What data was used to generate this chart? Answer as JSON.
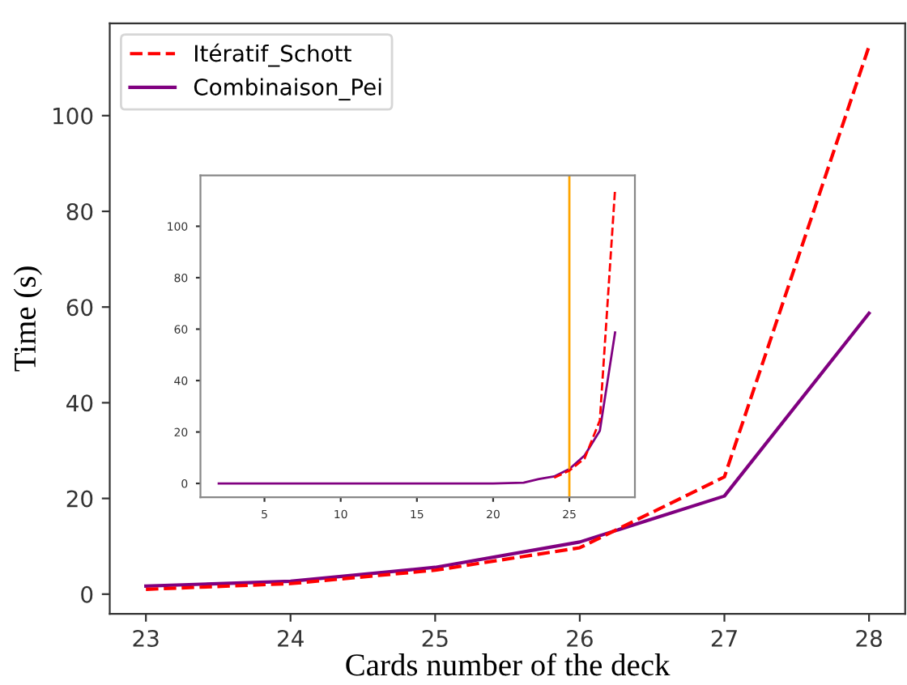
{
  "chart_data": [
    {
      "type": "line",
      "xlabel": "Cards number of the deck",
      "ylabel": "Time (s)",
      "x": [
        23,
        24,
        25,
        26,
        27,
        28
      ],
      "series": [
        {
          "name": "Itératif_Schott",
          "color": "#ff0000",
          "line_style": "dashed",
          "values": [
            1.0,
            2.2,
            5.0,
            9.7,
            24.5,
            114.5
          ]
        },
        {
          "name": "Combinaison_Pei",
          "color": "#800080",
          "line_style": "solid",
          "values": [
            1.7,
            2.7,
            5.6,
            10.9,
            20.5,
            58.7
          ]
        }
      ],
      "xlim": [
        22.75,
        28.25
      ],
      "ylim": [
        -4.1,
        119.3
      ],
      "xticks": [
        23,
        24,
        25,
        26,
        27,
        28
      ],
      "yticks": [
        0,
        20,
        40,
        60,
        80,
        100
      ],
      "legend": "top left",
      "grid": false
    },
    {
      "type": "line",
      "x": [
        2,
        3,
        4,
        5,
        6,
        7,
        8,
        9,
        10,
        11,
        12,
        13,
        14,
        15,
        16,
        17,
        18,
        19,
        20,
        21,
        22,
        23,
        24,
        25,
        26,
        27,
        28
      ],
      "series": [
        {
          "color": "#ff0000",
          "line_style": "dashed",
          "values": [
            null,
            null,
            null,
            null,
            null,
            null,
            null,
            null,
            null,
            null,
            null,
            null,
            null,
            null,
            null,
            null,
            null,
            null,
            null,
            null,
            null,
            null,
            2.2,
            5.0,
            9.7,
            24.5,
            114.5
          ]
        },
        {
          "color": "#800080",
          "line_style": "solid",
          "values": [
            0,
            0,
            0,
            0,
            0,
            0,
            0,
            0,
            0,
            0,
            0,
            0,
            0,
            0,
            0,
            0,
            0,
            0,
            0,
            0.1,
            0.3,
            1.7,
            2.7,
            5.6,
            10.9,
            20.5,
            58.7
          ]
        }
      ],
      "xlim": [
        0.8,
        29.3
      ],
      "ylim": [
        -5.4,
        119.8
      ],
      "xticks": [
        5,
        10,
        15,
        20,
        25
      ],
      "yticks": [
        0,
        20,
        40,
        60,
        80,
        100
      ],
      "ref_lines": [
        {
          "axis": "x",
          "value": 25,
          "color": "#ffa500"
        }
      ],
      "legend": false,
      "grid": false
    }
  ]
}
